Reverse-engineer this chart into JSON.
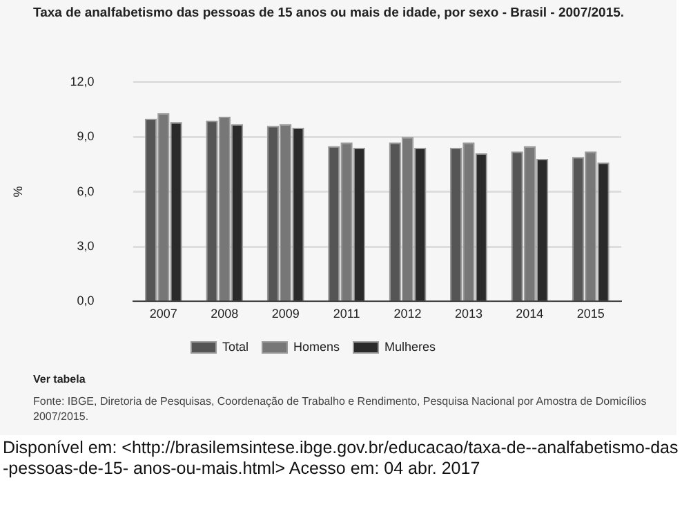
{
  "chart_data": {
    "type": "bar",
    "title": "Taxa de analfabetismo das pessoas de 15 anos ou mais de idade, por sexo - Brasil - 2007/2015.",
    "ylabel": "%",
    "categories": [
      "2007",
      "2008",
      "2009",
      "2011",
      "2012",
      "2013",
      "2014",
      "2015"
    ],
    "series": [
      {
        "name": "Total",
        "color": "#555555",
        "values": [
          10.0,
          9.9,
          9.6,
          8.5,
          8.7,
          8.4,
          8.2,
          7.9
        ]
      },
      {
        "name": "Homens",
        "color": "#777777",
        "values": [
          10.3,
          10.1,
          9.7,
          8.7,
          9.0,
          8.7,
          8.5,
          8.2
        ]
      },
      {
        "name": "Mulheres",
        "color": "#2a2a2a",
        "values": [
          9.8,
          9.7,
          9.5,
          8.4,
          8.4,
          8.1,
          7.8,
          7.6
        ]
      }
    ],
    "ylim": [
      0,
      12
    ],
    "yticks": [
      {
        "value": 0,
        "label": "0,0"
      },
      {
        "value": 3,
        "label": "3,0"
      },
      {
        "value": 6,
        "label": "6,0"
      },
      {
        "value": 9,
        "label": "9,0"
      },
      {
        "value": 12,
        "label": "12,0"
      }
    ],
    "grid": "y",
    "legend": "bottom",
    "annotations": [
      "Ver tabela",
      "Fonte: IBGE, Diretoria de Pesquisas, Coordenação de Trabalho e Rendimento, Pesquisa Nacional por Amostra de Domicílios 2007/2015.",
      "Disponível em: <http://brasilemsintese.ibge.gov.br/educacao/taxa-de--analfabetismo-das-pessoas-de-15- anos-ou-mais.html> Acesso em: 04 abr. 2017"
    ]
  }
}
